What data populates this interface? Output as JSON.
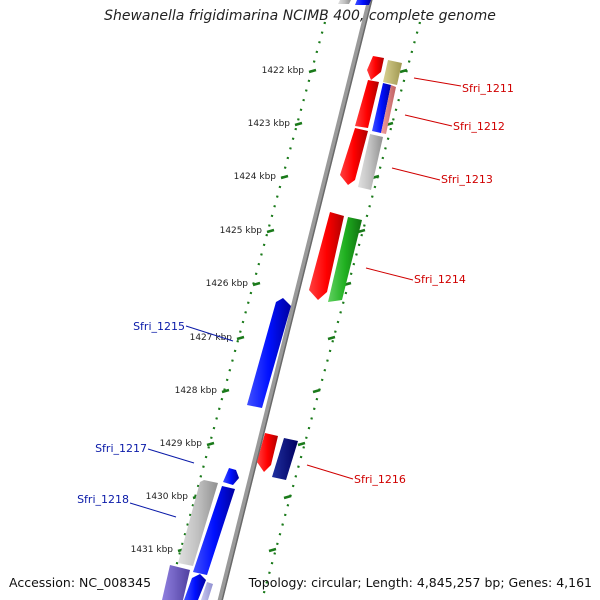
{
  "title": "Shewanella frigidimarina NCIMB 400, complete genome",
  "accession": "Accession: NC_008345",
  "topology": "Topology: circular; Length: 4,845,257 bp; Genes: 4,161",
  "colors": {
    "backbone": "#8a8a8a",
    "tick": "#1a7a1a",
    "label_red": "#d00000",
    "label_blue": "#0a1aa8"
  },
  "scale_labels": [
    "1422 kbp",
    "1423 kbp",
    "1424 kbp",
    "1425 kbp",
    "1426 kbp",
    "1427 kbp",
    "1428 kbp",
    "1429 kbp",
    "1430 kbp",
    "1431 kbp"
  ],
  "genes_right": [
    {
      "label": "Sfri_1211"
    },
    {
      "label": "Sfri_1212"
    },
    {
      "label": "Sfri_1213"
    },
    {
      "label": "Sfri_1214"
    },
    {
      "label": "Sfri_1216"
    }
  ],
  "genes_left": [
    {
      "label": "Sfri_1215"
    },
    {
      "label": "Sfri_1217"
    },
    {
      "label": "Sfri_1218"
    }
  ]
}
